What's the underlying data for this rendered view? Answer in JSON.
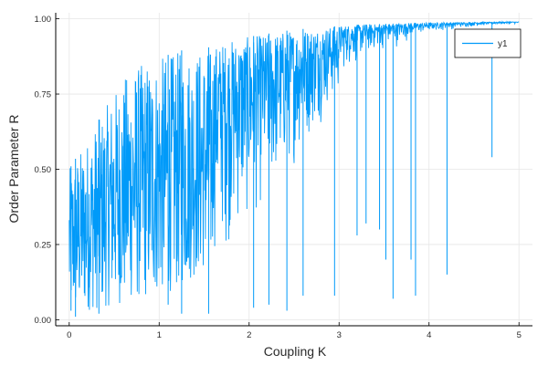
{
  "chart_data": {
    "type": "line",
    "title": "",
    "xlabel": "Coupling K",
    "ylabel": "Order Parameter R",
    "xlim": [
      -0.15,
      5.15
    ],
    "ylim": [
      -0.02,
      1.02
    ],
    "x_ticks": [
      0,
      1,
      2,
      3,
      4,
      5
    ],
    "x_tick_labels": [
      "0",
      "1",
      "2",
      "3",
      "4",
      "5"
    ],
    "y_ticks": [
      0,
      0.25,
      0.5,
      0.75,
      1.0
    ],
    "y_tick_labels": [
      "0.00",
      "0.25",
      "0.50",
      "0.75",
      "1.00"
    ],
    "grid": true,
    "legend_position": "top-right",
    "colors": {
      "series": "#009af9",
      "axis": "#000000",
      "grid": "#e6e6e6"
    },
    "series": [
      {
        "name": "y1",
        "x": [
          0,
          0.1,
          0.2,
          0.3,
          0.4,
          0.5,
          0.6,
          0.7,
          0.8,
          0.9,
          1.0,
          1.1,
          1.2,
          1.3,
          1.4,
          1.5,
          1.6,
          1.7,
          1.8,
          1.9,
          2.0,
          2.1,
          2.2,
          2.3,
          2.4,
          2.5,
          2.6,
          2.7,
          2.8,
          2.9,
          3.0,
          3.1,
          3.2,
          3.3,
          3.4,
          3.5,
          3.6,
          3.7,
          3.8,
          3.9,
          4.0,
          4.1,
          4.2,
          4.3,
          4.4,
          4.5,
          4.6,
          4.7,
          4.8,
          4.9,
          5.0
        ],
        "upper": [
          0.5,
          0.55,
          0.6,
          0.65,
          0.7,
          0.76,
          0.8,
          0.84,
          0.85,
          0.87,
          0.87,
          0.88,
          0.89,
          0.9,
          0.9,
          0.9,
          0.91,
          0.92,
          0.93,
          0.935,
          0.94,
          0.945,
          0.95,
          0.955,
          0.96,
          0.963,
          0.966,
          0.969,
          0.972,
          0.974,
          0.976,
          0.978,
          0.98,
          0.981,
          0.982,
          0.983,
          0.984,
          0.985,
          0.986,
          0.986,
          0.987,
          0.987,
          0.988,
          0.988,
          0.988,
          0.989,
          0.989,
          0.989,
          0.99,
          0.99,
          0.99
        ],
        "lower": [
          0.01,
          0.02,
          0.03,
          0.03,
          0.04,
          0.05,
          0.05,
          0.06,
          0.06,
          0.07,
          0.08,
          0.09,
          0.1,
          0.12,
          0.14,
          0.16,
          0.18,
          0.2,
          0.22,
          0.25,
          0.28,
          0.32,
          0.36,
          0.4,
          0.45,
          0.5,
          0.55,
          0.6,
          0.65,
          0.7,
          0.74,
          0.78,
          0.8,
          0.83,
          0.85,
          0.87,
          0.88,
          0.9,
          0.92,
          0.93,
          0.94,
          0.95,
          0.955,
          0.96,
          0.965,
          0.97,
          0.972,
          0.975,
          0.978,
          0.98,
          0.98
        ],
        "dips": [
          [
            0.02,
            0.03
          ],
          [
            0.07,
            0.01
          ],
          [
            0.33,
            0.02
          ],
          [
            1.1,
            0.05
          ],
          [
            1.25,
            0.02
          ],
          [
            1.55,
            0.02
          ],
          [
            2.05,
            0.04
          ],
          [
            2.22,
            0.05
          ],
          [
            2.42,
            0.03
          ],
          [
            2.6,
            0.08
          ],
          [
            2.95,
            0.08
          ],
          [
            3.2,
            0.28
          ],
          [
            3.3,
            0.32
          ],
          [
            3.45,
            0.3
          ],
          [
            3.52,
            0.2
          ],
          [
            3.6,
            0.07
          ],
          [
            3.8,
            0.2
          ],
          [
            3.85,
            0.08
          ],
          [
            4.2,
            0.15
          ],
          [
            4.7,
            0.54
          ]
        ]
      }
    ]
  }
}
